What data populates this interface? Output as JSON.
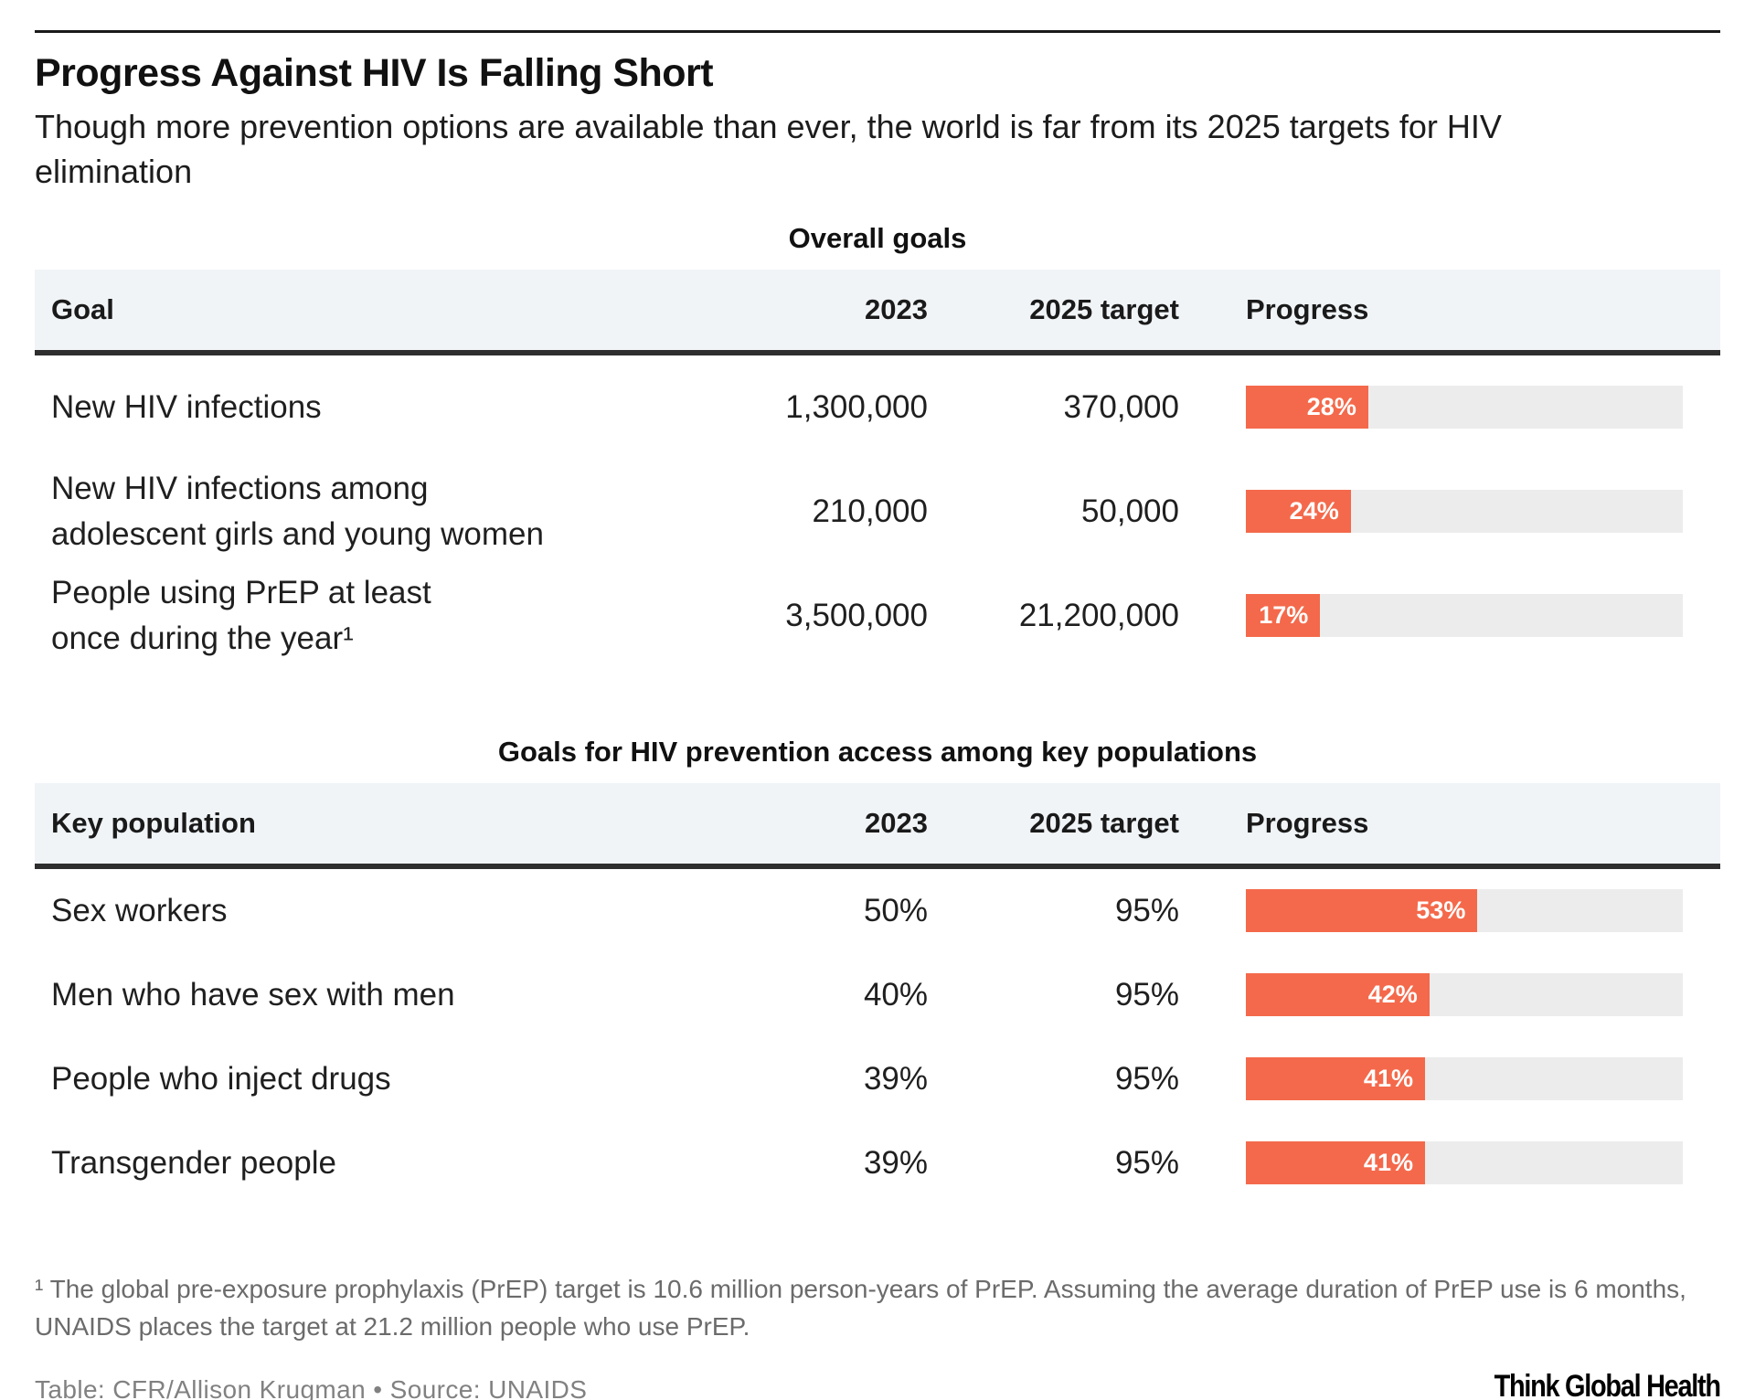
{
  "header": {
    "title": "Progress Against HIV Is Falling Short",
    "subtitle": "Though more prevention options are available than ever, the world is far from its 2025 targets for HIV\nelimination"
  },
  "colors": {
    "accent_orange": "#F4694B",
    "bar_track": "#ECECEC",
    "header_row_bg": "#F0F4F7",
    "header_rule": "#2E2E2E",
    "footnote_gray": "#6B6B6B",
    "credit_gray": "#818181"
  },
  "tables": [
    {
      "section_title": "Overall goals",
      "columns": [
        "Goal",
        "2023",
        "2025 target",
        "Progress"
      ],
      "rows": [
        {
          "label": "New HIV infections",
          "value_2023": "1,300,000",
          "value_target": "370,000",
          "progress_pct": 28,
          "progress_label": "28%"
        },
        {
          "label": "New HIV infections among\nadolescent girls and young women",
          "value_2023": "210,000",
          "value_target": "50,000",
          "progress_pct": 24,
          "progress_label": "24%"
        },
        {
          "label": "People using PrEP at least\nonce during the year¹",
          "value_2023": "3,500,000",
          "value_target": "21,200,000",
          "progress_pct": 17,
          "progress_label": "17%"
        }
      ]
    },
    {
      "section_title": "Goals for HIV prevention access among key populations",
      "columns": [
        "Key population",
        "2023",
        "2025 target",
        "Progress"
      ],
      "rows": [
        {
          "label": "Sex workers",
          "value_2023": "50%",
          "value_target": "95%",
          "progress_pct": 53,
          "progress_label": "53%"
        },
        {
          "label": "Men who have sex with men",
          "value_2023": "40%",
          "value_target": "95%",
          "progress_pct": 42,
          "progress_label": "42%"
        },
        {
          "label": "People who inject drugs",
          "value_2023": "39%",
          "value_target": "95%",
          "progress_pct": 41,
          "progress_label": "41%"
        },
        {
          "label": "Transgender people",
          "value_2023": "39%",
          "value_target": "95%",
          "progress_pct": 41,
          "progress_label": "41%"
        }
      ]
    }
  ],
  "footnote": "¹ The global pre-exposure prophylaxis (PrEP) target is 10.6 million person-years of PrEP. Assuming the average duration of PrEP use is 6 months,\nUNAIDS places the target at 21.2 million people who use PrEP.",
  "credit": "Table: CFR/Allison Krugman • Source: UNAIDS",
  "logo": "Think Global Health",
  "chart_data": [
    {
      "type": "table",
      "title": "Overall goals",
      "columns": [
        "Goal",
        "2023",
        "2025 target",
        "Progress"
      ],
      "rows": [
        {
          "goal": "New HIV infections",
          "y2023": 1300000,
          "target_2025": 370000,
          "progress_pct": 28
        },
        {
          "goal": "New HIV infections among adolescent girls and young women",
          "y2023": 210000,
          "target_2025": 50000,
          "progress_pct": 24
        },
        {
          "goal": "People using PrEP at least once during the year",
          "y2023": 3500000,
          "target_2025": 21200000,
          "progress_pct": 17
        }
      ],
      "progress_bar_type": "bar",
      "progress_bar_range": [
        0,
        100
      ]
    },
    {
      "type": "table",
      "title": "Goals for HIV prevention access among key populations",
      "columns": [
        "Key population",
        "2023",
        "2025 target",
        "Progress"
      ],
      "rows": [
        {
          "key_population": "Sex workers",
          "y2023_pct": 50,
          "target_2025_pct": 95,
          "progress_pct": 53
        },
        {
          "key_population": "Men who have sex with men",
          "y2023_pct": 40,
          "target_2025_pct": 95,
          "progress_pct": 42
        },
        {
          "key_population": "People who inject drugs",
          "y2023_pct": 39,
          "target_2025_pct": 95,
          "progress_pct": 41
        },
        {
          "key_population": "Transgender people",
          "y2023_pct": 39,
          "target_2025_pct": 95,
          "progress_pct": 41
        }
      ],
      "progress_bar_type": "bar",
      "progress_bar_range": [
        0,
        100
      ]
    }
  ]
}
